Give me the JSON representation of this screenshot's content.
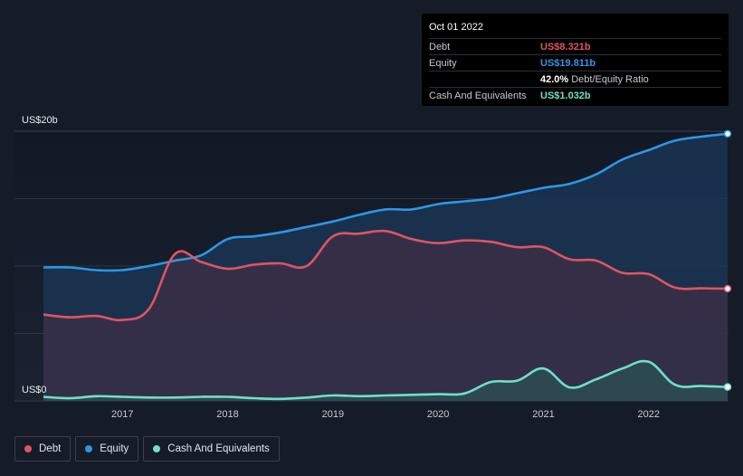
{
  "colors": {
    "background": "#151b27",
    "debt": "#e05462",
    "equity": "#2e96e6",
    "cash": "#6ee0cc",
    "grid": "#2f3542"
  },
  "tooltip": {
    "date": "Oct 01 2022",
    "debt_label": "Debt",
    "debt_value": "US$8.321b",
    "equity_label": "Equity",
    "equity_value": "US$19.811b",
    "ratio_value": "42.0%",
    "ratio_label": "Debt/Equity Ratio",
    "cash_label": "Cash And Equivalents",
    "cash_value": "US$1.032b"
  },
  "legend": {
    "debt": "Debt",
    "equity": "Equity",
    "cash": "Cash And Equivalents"
  },
  "chart_data": {
    "type": "area",
    "title": "",
    "xlabel": "",
    "ylabel": "",
    "ylim": [
      0,
      20
    ],
    "xlim": [
      2016.25,
      2022.75
    ],
    "y_tick_labels": [
      {
        "value": 20,
        "label": "US$20b"
      },
      {
        "value": 0,
        "label": "US$0"
      }
    ],
    "y_gridlines": [
      0,
      5,
      10,
      15,
      20
    ],
    "x_ticks": [
      {
        "value": 2017,
        "label": "2017"
      },
      {
        "value": 2018,
        "label": "2018"
      },
      {
        "value": 2019,
        "label": "2019"
      },
      {
        "value": 2020,
        "label": "2020"
      },
      {
        "value": 2021,
        "label": "2021"
      },
      {
        "value": 2022,
        "label": "2022"
      }
    ],
    "series": [
      {
        "name": "Equity",
        "key": "equity",
        "points": [
          [
            2016.25,
            9.9
          ],
          [
            2016.5,
            9.9
          ],
          [
            2016.75,
            9.7
          ],
          [
            2017.0,
            9.7
          ],
          [
            2017.25,
            10.0
          ],
          [
            2017.5,
            10.4
          ],
          [
            2017.75,
            10.8
          ],
          [
            2018.0,
            12.0
          ],
          [
            2018.25,
            12.2
          ],
          [
            2018.5,
            12.5
          ],
          [
            2018.75,
            12.9
          ],
          [
            2019.0,
            13.3
          ],
          [
            2019.25,
            13.8
          ],
          [
            2019.5,
            14.2
          ],
          [
            2019.75,
            14.2
          ],
          [
            2020.0,
            14.6
          ],
          [
            2020.25,
            14.8
          ],
          [
            2020.5,
            15.0
          ],
          [
            2020.75,
            15.4
          ],
          [
            2021.0,
            15.8
          ],
          [
            2021.25,
            16.1
          ],
          [
            2021.5,
            16.8
          ],
          [
            2021.75,
            17.9
          ],
          [
            2022.0,
            18.6
          ],
          [
            2022.25,
            19.3
          ],
          [
            2022.5,
            19.6
          ],
          [
            2022.75,
            19.811
          ]
        ]
      },
      {
        "name": "Debt",
        "key": "debt",
        "points": [
          [
            2016.25,
            6.4
          ],
          [
            2016.5,
            6.2
          ],
          [
            2016.75,
            6.3
          ],
          [
            2017.0,
            6.0
          ],
          [
            2017.25,
            6.8
          ],
          [
            2017.5,
            10.9
          ],
          [
            2017.75,
            10.3
          ],
          [
            2018.0,
            9.8
          ],
          [
            2018.25,
            10.1
          ],
          [
            2018.5,
            10.2
          ],
          [
            2018.75,
            10.0
          ],
          [
            2019.0,
            12.2
          ],
          [
            2019.25,
            12.4
          ],
          [
            2019.5,
            12.6
          ],
          [
            2019.75,
            12.0
          ],
          [
            2020.0,
            11.7
          ],
          [
            2020.25,
            11.9
          ],
          [
            2020.5,
            11.8
          ],
          [
            2020.75,
            11.4
          ],
          [
            2021.0,
            11.4
          ],
          [
            2021.25,
            10.5
          ],
          [
            2021.5,
            10.4
          ],
          [
            2021.75,
            9.5
          ],
          [
            2022.0,
            9.4
          ],
          [
            2022.25,
            8.4
          ],
          [
            2022.5,
            8.35
          ],
          [
            2022.75,
            8.321
          ]
        ]
      },
      {
        "name": "Cash And Equivalents",
        "key": "cash",
        "points": [
          [
            2016.25,
            0.3
          ],
          [
            2016.5,
            0.2
          ],
          [
            2016.75,
            0.35
          ],
          [
            2017.0,
            0.3
          ],
          [
            2017.25,
            0.25
          ],
          [
            2017.5,
            0.25
          ],
          [
            2017.75,
            0.3
          ],
          [
            2018.0,
            0.3
          ],
          [
            2018.25,
            0.2
          ],
          [
            2018.5,
            0.15
          ],
          [
            2018.75,
            0.25
          ],
          [
            2019.0,
            0.4
          ],
          [
            2019.25,
            0.35
          ],
          [
            2019.5,
            0.4
          ],
          [
            2019.75,
            0.45
          ],
          [
            2020.0,
            0.5
          ],
          [
            2020.25,
            0.55
          ],
          [
            2020.5,
            1.4
          ],
          [
            2020.75,
            1.5
          ],
          [
            2021.0,
            2.4
          ],
          [
            2021.25,
            1.0
          ],
          [
            2021.5,
            1.6
          ],
          [
            2021.75,
            2.4
          ],
          [
            2022.0,
            2.9
          ],
          [
            2022.25,
            1.2
          ],
          [
            2022.5,
            1.1
          ],
          [
            2022.75,
            1.032
          ]
        ]
      }
    ],
    "legend_position": "bottom-left",
    "grid": true
  }
}
